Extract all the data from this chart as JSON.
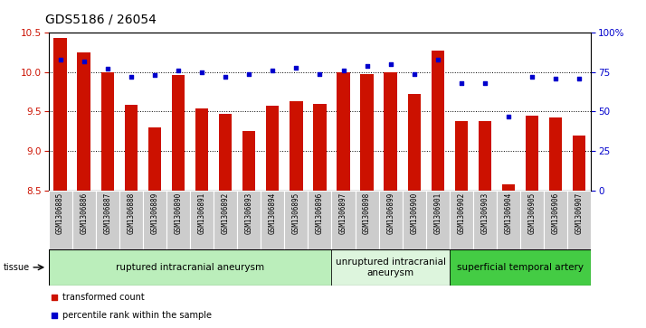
{
  "title": "GDS5186 / 26054",
  "samples": [
    "GSM1306885",
    "GSM1306886",
    "GSM1306887",
    "GSM1306888",
    "GSM1306889",
    "GSM1306890",
    "GSM1306891",
    "GSM1306892",
    "GSM1306893",
    "GSM1306894",
    "GSM1306895",
    "GSM1306896",
    "GSM1306897",
    "GSM1306898",
    "GSM1306899",
    "GSM1306900",
    "GSM1306901",
    "GSM1306902",
    "GSM1306903",
    "GSM1306904",
    "GSM1306905",
    "GSM1306906",
    "GSM1306907"
  ],
  "transformed_count": [
    10.44,
    10.25,
    10.0,
    9.58,
    9.3,
    9.96,
    9.54,
    9.47,
    9.25,
    9.57,
    9.63,
    9.6,
    10.0,
    9.97,
    10.0,
    9.72,
    10.27,
    9.38,
    9.38,
    8.58,
    9.45,
    9.42,
    9.2
  ],
  "percentile_rank": [
    83,
    82,
    77,
    72,
    73,
    76,
    75,
    72,
    74,
    76,
    78,
    74,
    76,
    79,
    80,
    74,
    83,
    68,
    68,
    47,
    72,
    71,
    71
  ],
  "ylim_left": [
    8.5,
    10.5
  ],
  "ylim_right": [
    0,
    100
  ],
  "yticks_left": [
    8.5,
    9.0,
    9.5,
    10.0,
    10.5
  ],
  "yticks_right": [
    0,
    25,
    50,
    75,
    100
  ],
  "ytick_labels_right": [
    "0",
    "25",
    "50",
    "75",
    "100%"
  ],
  "bar_color": "#cc1100",
  "dot_color": "#0000cc",
  "groups": [
    {
      "label": "ruptured intracranial aneurysm",
      "start": 0,
      "end": 12,
      "color": "#bbeebb"
    },
    {
      "label": "unruptured intracranial\naneurysm",
      "start": 12,
      "end": 17,
      "color": "#ddf5dd"
    },
    {
      "label": "superficial temporal artery",
      "start": 17,
      "end": 23,
      "color": "#44cc44"
    }
  ],
  "tissue_label": "tissue",
  "legend_bar_label": "transformed count",
  "legend_dot_label": "percentile rank within the sample",
  "background_color": "#ffffff",
  "plot_bg_color": "#ffffff",
  "tick_label_bg": "#cccccc",
  "grid_color": "#000000",
  "title_fontsize": 10,
  "tick_fontsize": 7.5,
  "label_fontsize": 7.5,
  "group_fontsize": 7.5
}
